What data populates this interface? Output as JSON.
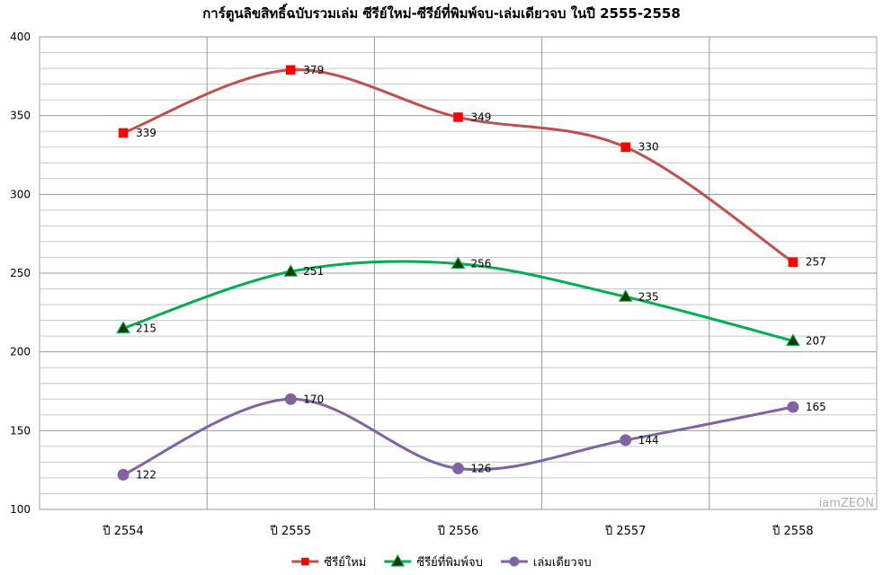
{
  "chart_data": {
    "type": "line",
    "title": "การ์ตูนลิขสิทธิ์ฉบับรวมเล่ม ซีรีย์ใหม่-ซีรีย์ที่พิมพ์จบ-เล่มเดียวจบ ในปี 2555-2558",
    "xlabel": "",
    "ylabel": "",
    "categories": [
      "ปี 2554",
      "ปี 2555",
      "ปี 2556",
      "ปี 2557",
      "ปี 2558"
    ],
    "ylim": [
      100,
      400
    ],
    "yticks": [
      100,
      150,
      200,
      250,
      300,
      350,
      400
    ],
    "grid": true,
    "smooth": true,
    "legend_position": "bottom",
    "series": [
      {
        "name": "ซีรีย์ใหม่",
        "values": [
          339,
          379,
          349,
          330,
          257
        ],
        "color": "#c0504d",
        "marker": "square",
        "marker_color": "#ff0000"
      },
      {
        "name": "ซีรีย์ที่พิมพ์จบ",
        "values": [
          215,
          251,
          256,
          235,
          207
        ],
        "color": "#00b050",
        "marker": "triangle",
        "marker_color": "#1b3a00"
      },
      {
        "name": "เล่มเดียวจบ",
        "values": [
          122,
          170,
          126,
          144,
          165
        ],
        "color": "#8064a2",
        "marker": "circle",
        "marker_color": "#8064a2"
      }
    ]
  },
  "watermark": "iamZEON"
}
